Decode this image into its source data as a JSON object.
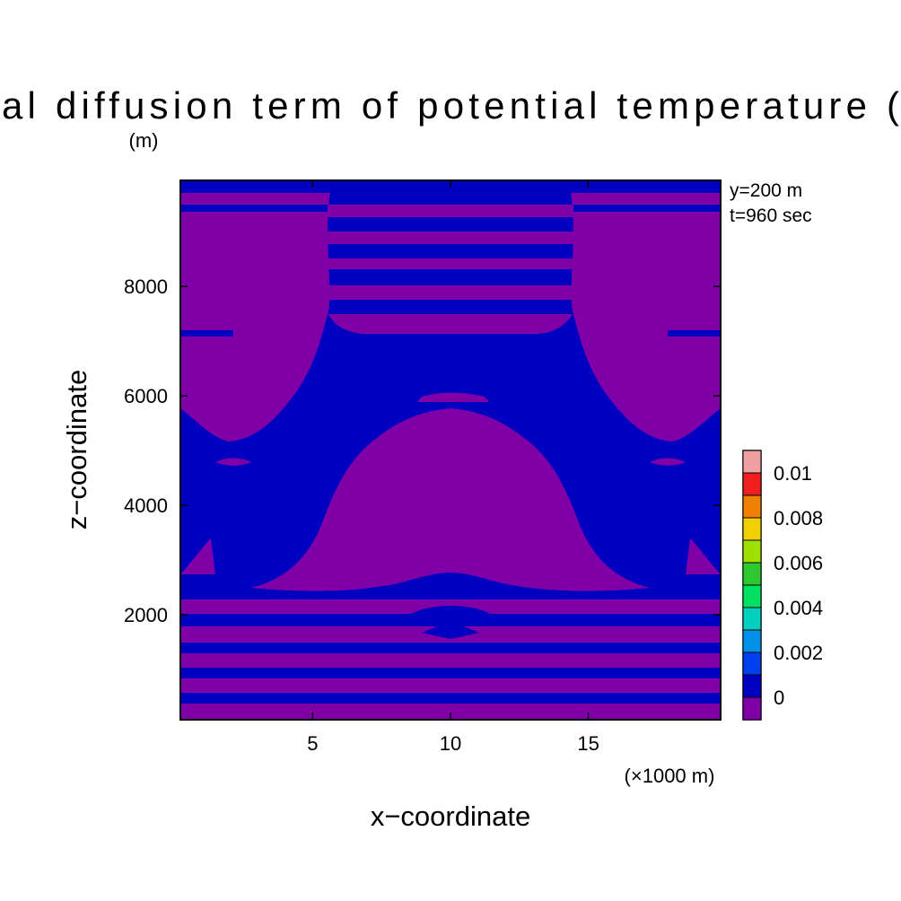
{
  "chart_data": {
    "type": "contour",
    "title": "al diffusion term of potential temperature (",
    "x_label": "x−coordinate",
    "y_label": "z−coordinate",
    "x_unit": "(×1000 m)",
    "y_unit": "(m)",
    "annotations": [
      "y=200 m",
      "t=960 sec"
    ],
    "xlim": [
      0.2,
      19.8
    ],
    "xticks": [
      5,
      10,
      15
    ],
    "ylim": [
      80,
      9940
    ],
    "yticks": [
      2000,
      4000,
      6000,
      8000
    ],
    "colorbar": {
      "levels": [
        0,
        0.001,
        0.002,
        0.003,
        0.004,
        0.005,
        0.006,
        0.007,
        0.008,
        0.009,
        0.01
      ],
      "ticks": [
        0,
        0.002,
        0.004,
        0.006,
        0.008,
        0.01
      ],
      "colors": [
        "#8000a8",
        "#0000c0",
        "#0040f0",
        "#0090e8",
        "#00d0c0",
        "#00e060",
        "#30c830",
        "#a0e000",
        "#f0d000",
        "#f08000",
        "#f02020",
        "#f0a0a0"
      ]
    }
  }
}
